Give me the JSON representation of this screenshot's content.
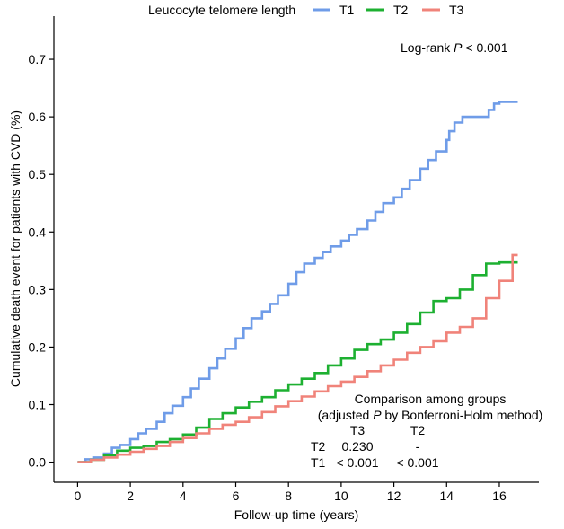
{
  "chart_data": {
    "type": "line",
    "step": true,
    "xlabel": "Follow-up time (years)",
    "ylabel": "Cumulative death event for patients with CVD (%)",
    "xlim": [
      -0.9,
      17.5
    ],
    "ylim": [
      -0.035,
      0.775
    ],
    "x_ticks": [
      0,
      2,
      4,
      6,
      8,
      10,
      12,
      14,
      16
    ],
    "x_tick_labels": [
      "0",
      "2",
      "4",
      "6",
      "8",
      "10",
      "12",
      "14",
      "16"
    ],
    "y_ticks": [
      0.0,
      0.1,
      0.2,
      0.3,
      0.4,
      0.5,
      0.6,
      0.7
    ],
    "y_tick_labels": [
      "0.0",
      "0.1",
      "0.2",
      "0.3",
      "0.4",
      "0.5",
      "0.6",
      "0.7"
    ],
    "legend": {
      "title": "Leucocyte telomere length",
      "placement": "top",
      "entries": [
        "T1",
        "T2",
        "T3"
      ]
    },
    "series": [
      {
        "name": "T1",
        "color": "#6f9ce8",
        "x": [
          0,
          0.3,
          0.6,
          1.0,
          1.3,
          1.6,
          2.0,
          2.3,
          2.6,
          3.0,
          3.3,
          3.6,
          4.0,
          4.3,
          4.6,
          5.0,
          5.3,
          5.6,
          6.0,
          6.3,
          6.6,
          7.0,
          7.3,
          7.6,
          8.0,
          8.3,
          8.6,
          9.0,
          9.3,
          9.6,
          10.0,
          10.3,
          10.6,
          11.0,
          11.3,
          11.6,
          12.0,
          12.3,
          12.6,
          13.0,
          13.3,
          13.6,
          14.0,
          14.1,
          14.3,
          14.6,
          15.0,
          15.3,
          15.6,
          15.8,
          16.0,
          16.7
        ],
        "y": [
          0.0,
          0.005,
          0.008,
          0.015,
          0.025,
          0.03,
          0.04,
          0.05,
          0.058,
          0.07,
          0.085,
          0.098,
          0.113,
          0.128,
          0.145,
          0.163,
          0.18,
          0.197,
          0.215,
          0.233,
          0.25,
          0.262,
          0.275,
          0.29,
          0.31,
          0.33,
          0.345,
          0.355,
          0.365,
          0.375,
          0.385,
          0.395,
          0.405,
          0.42,
          0.435,
          0.45,
          0.46,
          0.475,
          0.49,
          0.51,
          0.525,
          0.54,
          0.56,
          0.575,
          0.59,
          0.6,
          0.6,
          0.6,
          0.612,
          0.623,
          0.626,
          0.626
        ]
      },
      {
        "name": "T2",
        "color": "#1db031",
        "x": [
          0,
          0.5,
          1.0,
          1.5,
          2.0,
          2.5,
          3.0,
          3.5,
          4.0,
          4.5,
          5.0,
          5.5,
          6.0,
          6.5,
          7.0,
          7.5,
          8.0,
          8.5,
          9.0,
          9.5,
          10.0,
          10.5,
          11.0,
          11.5,
          12.0,
          12.5,
          13.0,
          13.5,
          14.0,
          14.5,
          15.0,
          15.5,
          16.0,
          16.7
        ],
        "y": [
          0.0,
          0.004,
          0.012,
          0.02,
          0.025,
          0.028,
          0.035,
          0.04,
          0.048,
          0.06,
          0.075,
          0.085,
          0.095,
          0.105,
          0.113,
          0.125,
          0.135,
          0.145,
          0.155,
          0.168,
          0.18,
          0.195,
          0.205,
          0.213,
          0.225,
          0.24,
          0.26,
          0.28,
          0.285,
          0.3,
          0.325,
          0.345,
          0.347,
          0.347
        ]
      },
      {
        "name": "T3",
        "color": "#f0837a",
        "x": [
          0,
          0.5,
          1.0,
          1.5,
          2.0,
          2.5,
          3.0,
          3.5,
          4.0,
          4.5,
          5.0,
          5.5,
          6.0,
          6.5,
          7.0,
          7.5,
          8.0,
          8.5,
          9.0,
          9.5,
          10.0,
          10.5,
          11.0,
          11.5,
          12.0,
          12.5,
          13.0,
          13.5,
          14.0,
          14.5,
          15.0,
          15.5,
          16.0,
          16.5,
          16.7
        ],
        "y": [
          0.0,
          0.004,
          0.008,
          0.013,
          0.018,
          0.023,
          0.028,
          0.035,
          0.042,
          0.05,
          0.058,
          0.065,
          0.07,
          0.078,
          0.087,
          0.097,
          0.106,
          0.114,
          0.123,
          0.132,
          0.14,
          0.148,
          0.158,
          0.168,
          0.178,
          0.19,
          0.2,
          0.21,
          0.225,
          0.235,
          0.25,
          0.285,
          0.315,
          0.36,
          0.36
        ]
      }
    ],
    "annotations": {
      "logrank_prefix": "Log-rank ",
      "logrank_p": "P",
      "logrank_suffix": " < 0.001",
      "comparison_title": "Comparison among groups",
      "comparison_sub_prefix": "(adjusted ",
      "comparison_sub_p": "P",
      "comparison_sub_suffix": " by Bonferroni-Holm method)",
      "table": {
        "col_headers": [
          "T3",
          "T2"
        ],
        "rows": [
          {
            "label": "T2",
            "values": [
              "0.230",
              "-"
            ]
          },
          {
            "label": "T1",
            "values": [
              "< 0.001",
              "< 0.001"
            ]
          }
        ]
      }
    }
  }
}
